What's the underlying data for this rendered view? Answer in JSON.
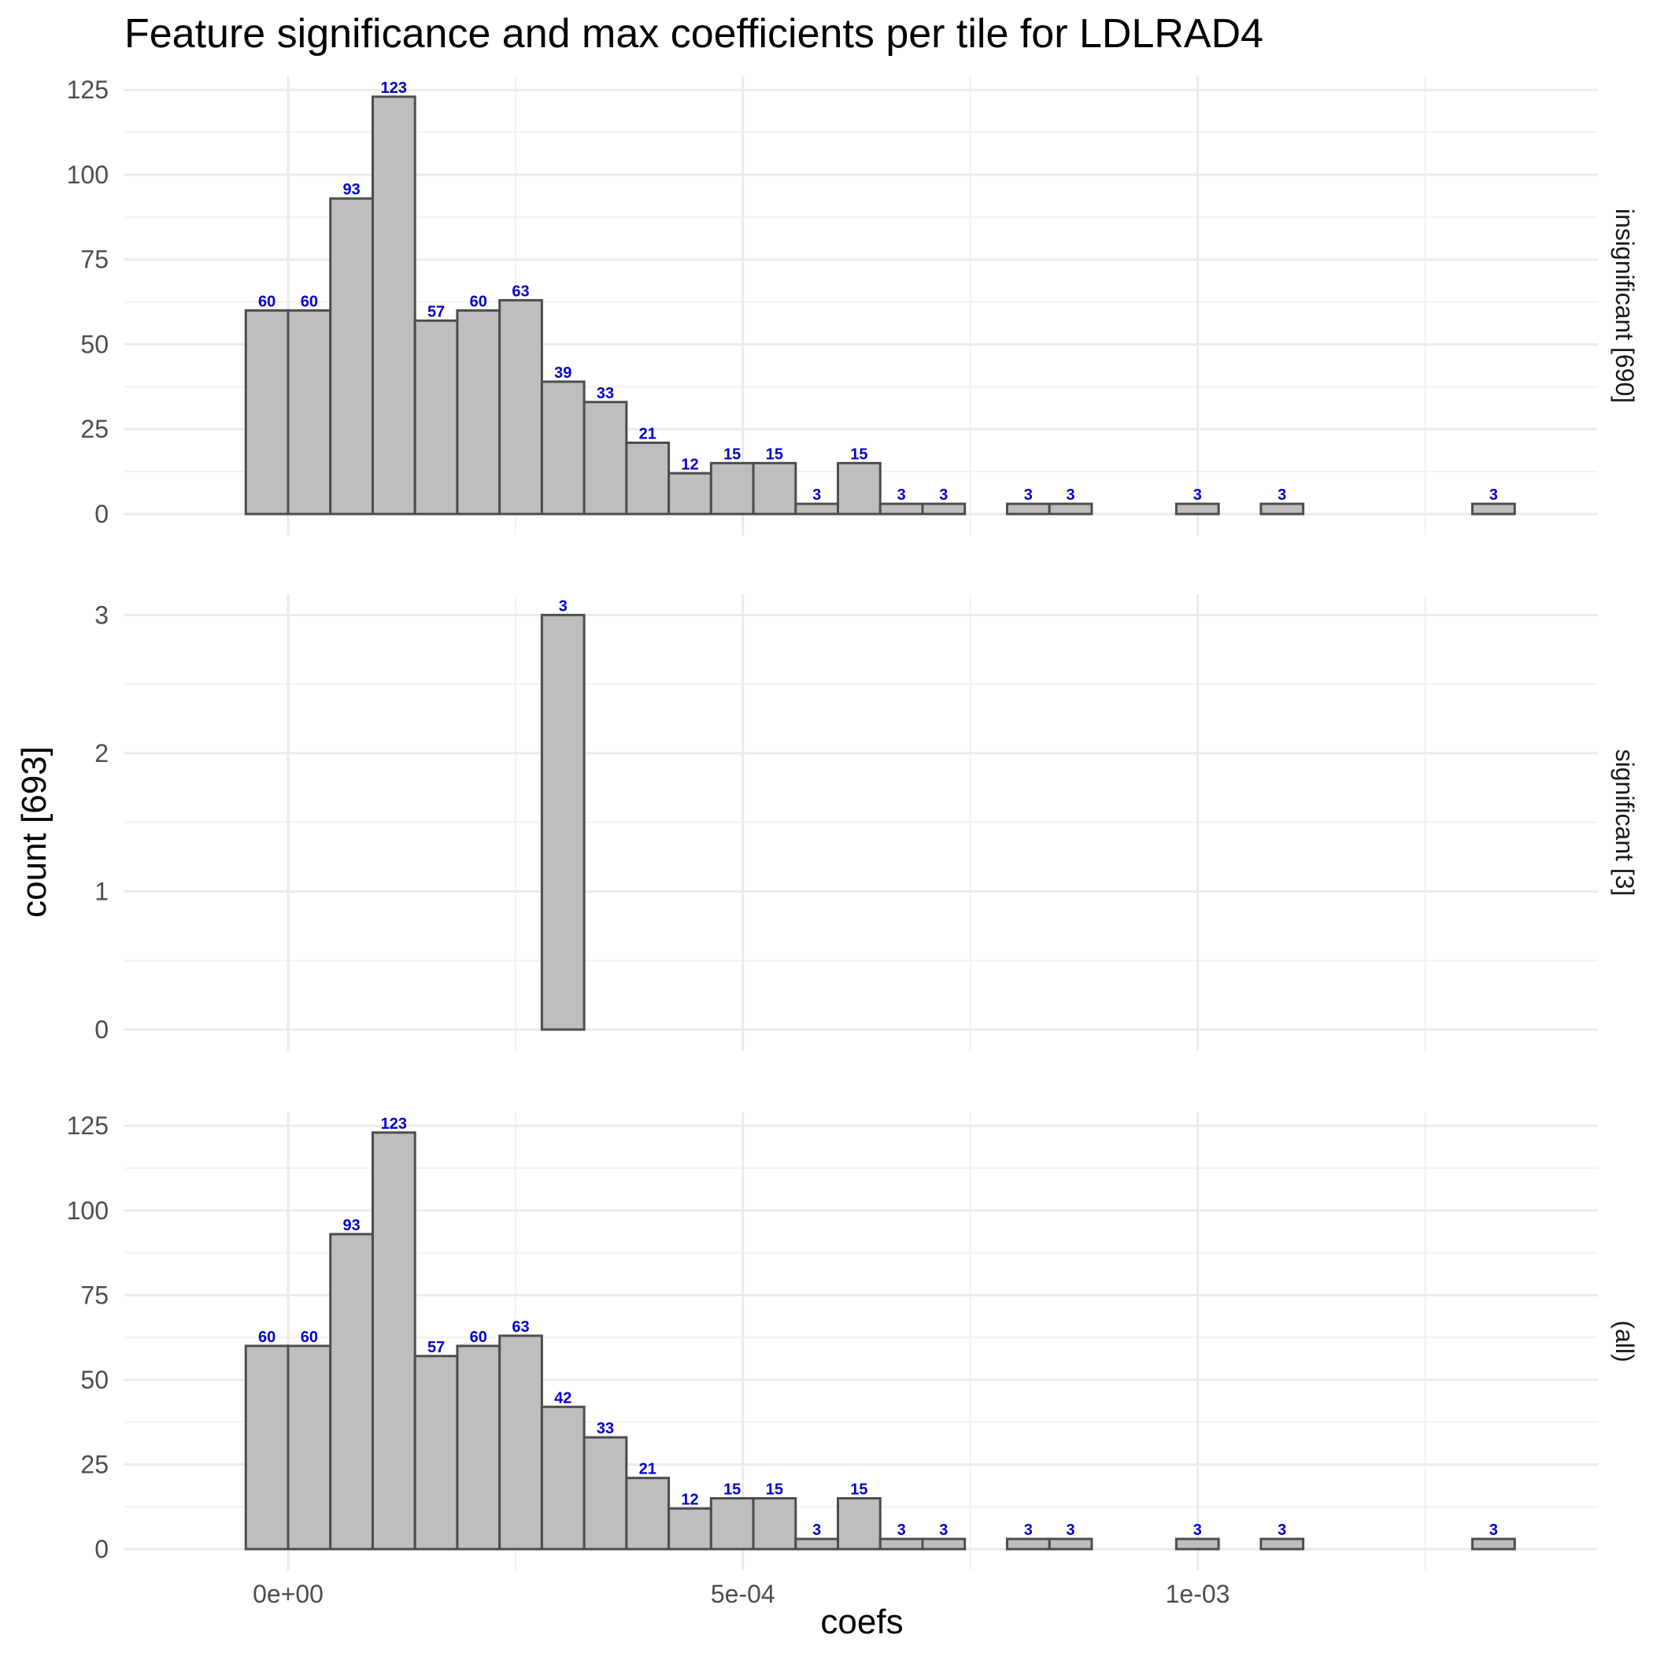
{
  "chart_data": {
    "type": "bar",
    "title": "Feature significance and max coefficients per tile for LDLRAD4",
    "xlabel": "coefs",
    "ylabel": "count [693]",
    "x_ticks": [
      "0e+00",
      "5e-04",
      "1e-03"
    ],
    "x_tick_values": [
      0,
      0.0005,
      0.001
    ],
    "xlim": [
      -0.00018,
      0.00144
    ],
    "grid": true,
    "bin_width": 4.65e-05,
    "bin_starts": [
      -4.65e-05,
      0.0,
      4.65e-05,
      9.3e-05,
      0.0001395,
      0.000186,
      0.0002325,
      0.000279,
      0.0003255,
      0.000372,
      0.0004185,
      0.000465,
      0.0005115,
      0.000558,
      0.0006045,
      0.000651,
      0.0006975,
      0.000744,
      0.0007905,
      0.000837,
      0.0008835,
      0.00093,
      0.0009765,
      0.001023,
      0.0010695,
      0.001116,
      0.0011625,
      0.001209,
      0.0012555,
      0.001302
    ],
    "bar_fill": "#bebebe",
    "bar_outline": "#4d4d4d",
    "label_color": "#0000cc",
    "panels": [
      {
        "strip": "insignificant [690]",
        "ylim": [
          0,
          129
        ],
        "y_ticks": [
          "0",
          "25",
          "50",
          "75",
          "100",
          "125"
        ],
        "y_tick_values": [
          0,
          25,
          50,
          75,
          100,
          125
        ],
        "counts": [
          60,
          60,
          93,
          123,
          57,
          60,
          63,
          39,
          33,
          21,
          12,
          15,
          15,
          3,
          15,
          3,
          3,
          0,
          3,
          3,
          0,
          0,
          3,
          0,
          3,
          0,
          0,
          0,
          0,
          3
        ],
        "labels": [
          "60",
          "60",
          "93",
          "123",
          "57",
          "60",
          "63",
          "39",
          "33",
          "21",
          "12",
          "15",
          "15",
          "3",
          "15",
          "3",
          "3",
          "",
          "3",
          "3",
          "",
          "",
          "3",
          "",
          "3",
          "",
          "",
          "",
          "",
          "3"
        ]
      },
      {
        "strip": "significant [3]",
        "ylim": [
          0,
          3.15
        ],
        "y_ticks": [
          "0",
          "1",
          "2",
          "3"
        ],
        "y_tick_values": [
          0,
          1,
          2,
          3
        ],
        "counts": [
          0,
          0,
          0,
          0,
          0,
          0,
          0,
          3,
          0,
          0,
          0,
          0,
          0,
          0,
          0,
          0,
          0,
          0,
          0,
          0,
          0,
          0,
          0,
          0,
          0,
          0,
          0,
          0,
          0,
          0
        ],
        "labels": [
          "",
          "",
          "",
          "",
          "",
          "",
          "",
          "3",
          "",
          "",
          "",
          "",
          "",
          "",
          "",
          "",
          "",
          "",
          "",
          "",
          "",
          "",
          "",
          "",
          "",
          "",
          "",
          "",
          "",
          ""
        ]
      },
      {
        "strip": "(all)",
        "ylim": [
          0,
          129
        ],
        "y_ticks": [
          "0",
          "25",
          "50",
          "75",
          "100",
          "125"
        ],
        "y_tick_values": [
          0,
          25,
          50,
          75,
          100,
          125
        ],
        "counts": [
          60,
          60,
          93,
          123,
          57,
          60,
          63,
          42,
          33,
          21,
          12,
          15,
          15,
          3,
          15,
          3,
          3,
          0,
          3,
          3,
          0,
          0,
          3,
          0,
          3,
          0,
          0,
          0,
          0,
          3
        ],
        "labels": [
          "60",
          "60",
          "93",
          "123",
          "57",
          "60",
          "63",
          "42",
          "33",
          "21",
          "12",
          "15",
          "15",
          "3",
          "15",
          "3",
          "3",
          "",
          "3",
          "3",
          "",
          "",
          "3",
          "",
          "3",
          "",
          "",
          "",
          "",
          "3"
        ]
      }
    ]
  }
}
